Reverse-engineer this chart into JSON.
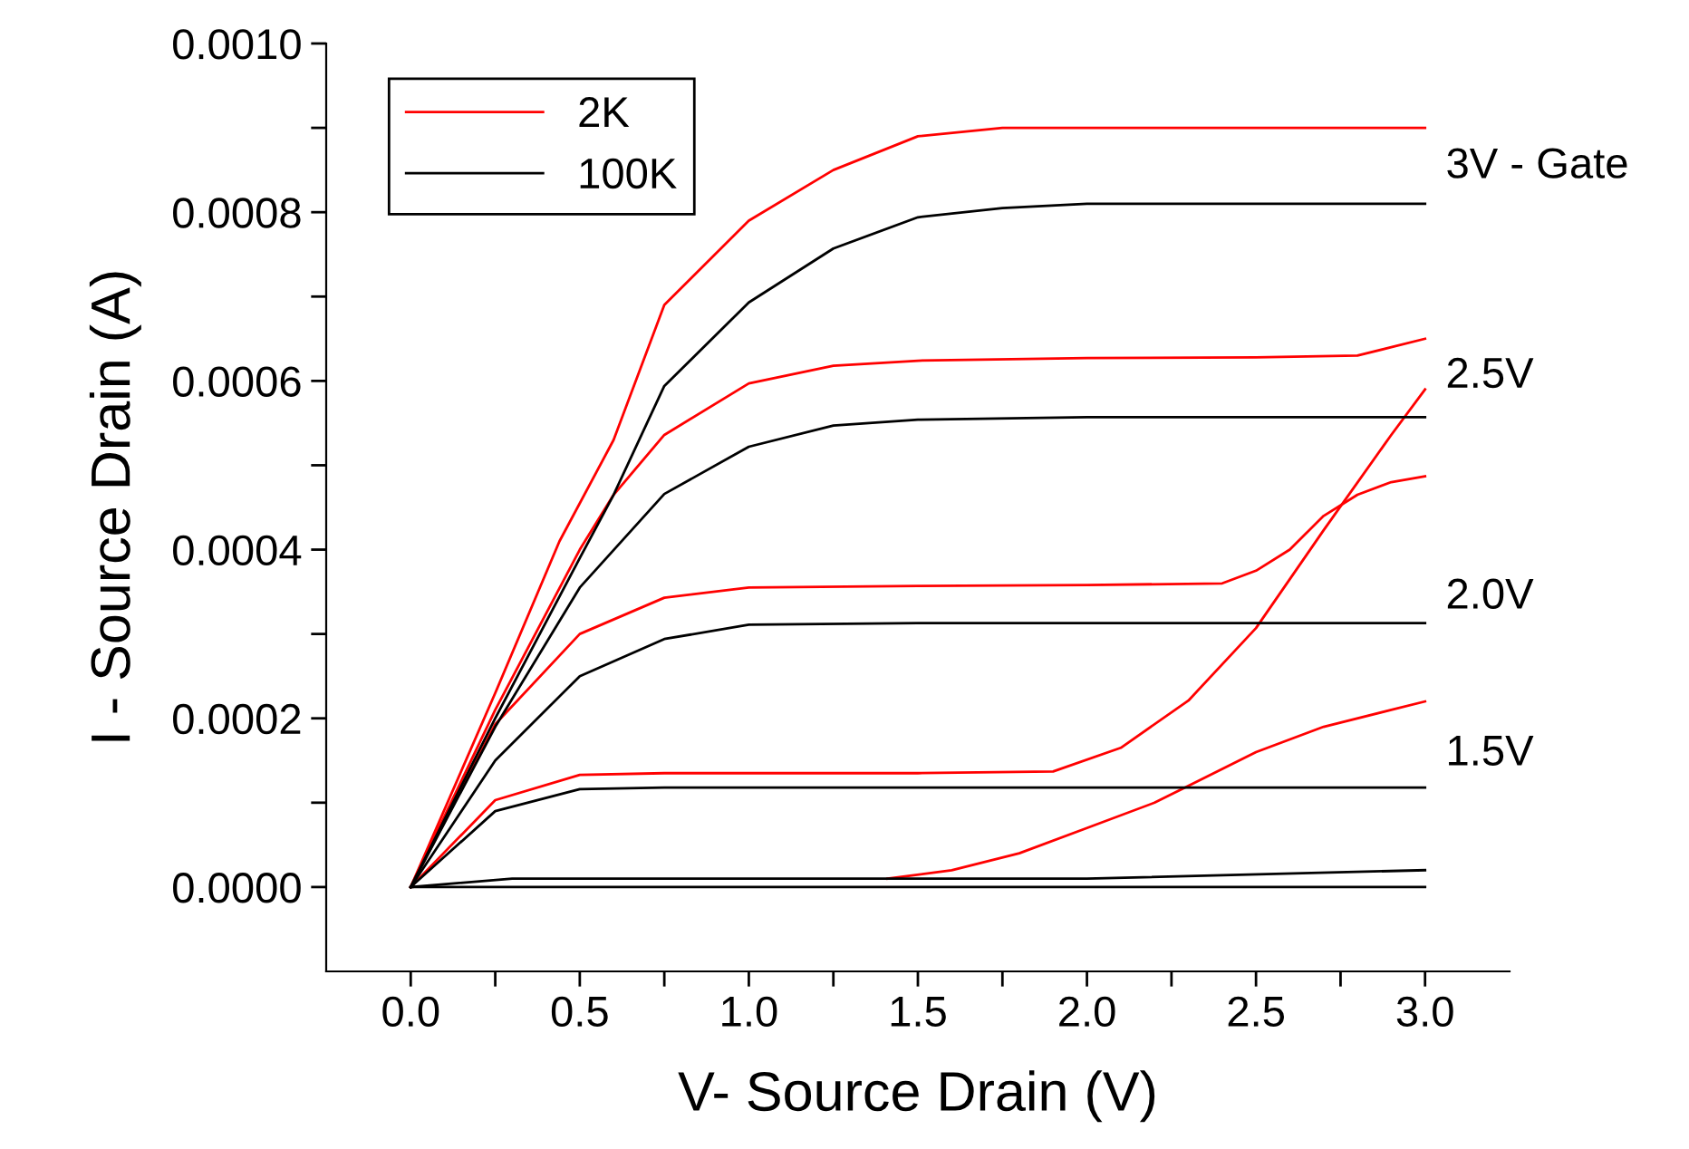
{
  "chart_data": {
    "type": "line",
    "xlabel": "V- Source Drain (V)",
    "ylabel": "I - Source Drain (A)",
    "xlim": [
      -0.25,
      3.25
    ],
    "ylim": [
      -0.0001,
      0.001
    ],
    "xticks": [
      {
        "value": 0,
        "label": "0.0"
      },
      {
        "value": 0.25,
        "label": null
      },
      {
        "value": 0.5,
        "label": "0.5"
      },
      {
        "value": 0.75,
        "label": null
      },
      {
        "value": 1,
        "label": "1.0"
      },
      {
        "value": 1.25,
        "label": null
      },
      {
        "value": 1.5,
        "label": "1.5"
      },
      {
        "value": 1.75,
        "label": null
      },
      {
        "value": 2,
        "label": "2.0"
      },
      {
        "value": 2.25,
        "label": null
      },
      {
        "value": 2.5,
        "label": "2.5"
      },
      {
        "value": 2.75,
        "label": null
      },
      {
        "value": 3,
        "label": "3.0"
      }
    ],
    "yticks": [
      {
        "value": 0,
        "label": "0.0000"
      },
      {
        "value": 0.0001,
        "label": null
      },
      {
        "value": 0.0002,
        "label": "0.0002"
      },
      {
        "value": 0.0003,
        "label": null
      },
      {
        "value": 0.0004,
        "label": "0.0004"
      },
      {
        "value": 0.0005,
        "label": null
      },
      {
        "value": 0.0006,
        "label": "0.0006"
      },
      {
        "value": 0.0007,
        "label": null
      },
      {
        "value": 0.0008,
        "label": "0.0008"
      },
      {
        "value": 0.0009,
        "label": null
      },
      {
        "value": 0.001,
        "label": "0.0010"
      }
    ],
    "grid": false,
    "legend": "top left",
    "marker": "none",
    "line_style": "solid",
    "series": [
      {
        "name": "2K",
        "color": "#ff0000",
        "x": [
          0,
          0.25,
          0.44,
          0.6,
          0.75,
          1.0,
          1.25,
          1.5,
          1.75,
          2.0,
          2.5,
          3.0
        ],
        "values": [
          0,
          0.00023,
          0.00041,
          0.00053,
          0.00069,
          0.00079,
          0.00085,
          0.00089,
          0.0009,
          0.0009,
          0.0009,
          0.0009
        ]
      },
      {
        "color": "#ff0000",
        "x": [
          0,
          0.25,
          0.5,
          0.6,
          0.75,
          1.0,
          1.25,
          1.5,
          2.0,
          2.5,
          2.8,
          2.9,
          3.0
        ],
        "values": [
          0,
          0.00021,
          0.0004,
          0.000465,
          0.000536,
          0.000597,
          0.000618,
          0.000624,
          0.000627,
          0.000628,
          0.00063,
          0.00064,
          0.00065
        ]
      },
      {
        "color": "#ff0000",
        "x": [
          0,
          0.25,
          0.5,
          0.75,
          1.0,
          1.5,
          2.0,
          2.4,
          2.5,
          2.6,
          2.7,
          2.8,
          2.9,
          3.0
        ],
        "values": [
          0,
          0.000193,
          0.0003,
          0.000343,
          0.000355,
          0.000357,
          0.000358,
          0.00036,
          0.000375,
          0.0004,
          0.00044,
          0.000465,
          0.00048,
          0.000487
        ]
      },
      {
        "color": "#ff0000",
        "x": [
          0,
          0.25,
          0.5,
          0.75,
          1.0,
          1.5,
          1.9,
          2.1,
          2.3,
          2.5,
          2.7,
          2.9,
          3.0
        ],
        "values": [
          0,
          0.000103,
          0.000133,
          0.000135,
          0.000135,
          0.000135,
          0.000137,
          0.000165,
          0.000221,
          0.000307,
          0.000423,
          0.000536,
          0.00059
        ]
      },
      {
        "color": "#ff0000",
        "x": [
          1.41,
          1.6,
          1.8,
          2.0,
          2.2,
          2.3,
          2.5,
          2.7,
          2.9,
          3.0
        ],
        "values": [
          1e-05,
          2e-05,
          4e-05,
          7e-05,
          0.0001,
          0.00012,
          0.00016,
          0.00019,
          0.00021,
          0.00022
        ]
      },
      {
        "name": "100K",
        "color": "#000000",
        "x": [
          0,
          0.25,
          0.5,
          0.6,
          0.75,
          1.0,
          1.25,
          1.5,
          1.75,
          2.0,
          2.5,
          3.0
        ],
        "values": [
          0,
          0.0002,
          0.00039,
          0.000465,
          0.000594,
          0.000693,
          0.000757,
          0.000794,
          0.000805,
          0.00081,
          0.00081,
          0.00081
        ]
      },
      {
        "color": "#000000",
        "x": [
          0,
          0.25,
          0.5,
          0.75,
          1.0,
          1.25,
          1.5,
          2.0,
          2.5,
          3.0
        ],
        "values": [
          0,
          0.00019,
          0.000355,
          0.000466,
          0.000522,
          0.000547,
          0.000554,
          0.000557,
          0.000557,
          0.000557
        ]
      },
      {
        "color": "#000000",
        "x": [
          0,
          0.25,
          0.5,
          0.75,
          1.0,
          1.5,
          2.0,
          3.0
        ],
        "values": [
          0,
          0.00015,
          0.00025,
          0.000294,
          0.000311,
          0.000313,
          0.000313,
          0.000313
        ]
      },
      {
        "color": "#000000",
        "x": [
          0,
          0.25,
          0.5,
          0.75,
          1.0,
          2.0,
          3.0
        ],
        "values": [
          0,
          9e-05,
          0.000116,
          0.000118,
          0.000118,
          0.000118,
          0.000118
        ]
      },
      {
        "color": "#000000",
        "x": [
          0,
          0.3,
          1.0,
          2.0,
          3.0
        ],
        "values": [
          0,
          1e-05,
          1e-05,
          1e-05,
          2e-05
        ]
      },
      {
        "color": "#000000",
        "x": [
          0,
          3.0
        ],
        "values": [
          0,
          0
        ]
      }
    ],
    "annotations": [
      "3V - Gate",
      "2.5V",
      "2.0V",
      "1.5V"
    ]
  }
}
